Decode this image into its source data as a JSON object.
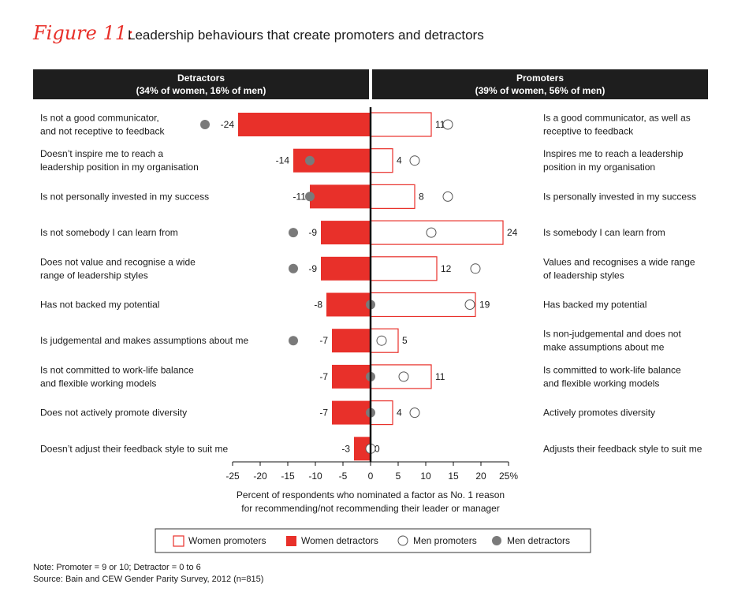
{
  "header": {
    "figure_label": "Figure 11:",
    "title": "Leadership behaviours that create promoters and detractors"
  },
  "columns": {
    "detractors_title": "Detractors",
    "detractors_sub": "(34% of women, 16% of men)",
    "promoters_title": "Promoters",
    "promoters_sub": "(39% of women, 56% of men)"
  },
  "chart_data": {
    "type": "bar",
    "orientation": "horizontal-diverging",
    "xlim": [
      -25,
      25
    ],
    "x_ticks": [
      "-25",
      "-20",
      "-15",
      "-10",
      "-5",
      "0",
      "5",
      "10",
      "15",
      "20",
      "25%"
    ],
    "xlabel": "Percent of respondents who nominated a factor as No. 1 reason for recommending/not recommending their leader or manager",
    "xlabel_lines": [
      "Percent of respondents who nominated a factor as No. 1 reason",
      "for recommending/not recommending their leader or manager"
    ],
    "rows": [
      {
        "detractor_label": [
          "Is not a good communicator,",
          "and not receptive to feedback"
        ],
        "promoter_label": [
          "Is a good communicator, as well as",
          "receptive to feedback"
        ],
        "women_detractors": -24,
        "men_detractors": -30,
        "women_promoters": 11,
        "men_promoters": 14
      },
      {
        "detractor_label": [
          "Doesn’t inspire me to reach a",
          "leadership position in my organisation"
        ],
        "promoter_label": [
          "Inspires me to reach a leadership",
          "position in my organisation"
        ],
        "women_detractors": -14,
        "men_detractors": -11,
        "women_promoters": 4,
        "men_promoters": 8
      },
      {
        "detractor_label": [
          "Is not personally invested in my success"
        ],
        "promoter_label": [
          "Is personally invested in my success"
        ],
        "women_detractors": -11,
        "men_detractors": -11,
        "women_promoters": 8,
        "men_promoters": 14
      },
      {
        "detractor_label": [
          "Is not somebody I can learn from"
        ],
        "promoter_label": [
          "Is somebody I can learn from"
        ],
        "women_detractors": -9,
        "men_detractors": -14,
        "women_promoters": 24,
        "men_promoters": 11
      },
      {
        "detractor_label": [
          "Does not value and recognise a wide",
          "range of leadership styles"
        ],
        "promoter_label": [
          "Values and recognises a wide range",
          "of leadership styles"
        ],
        "women_detractors": -9,
        "men_detractors": -14,
        "women_promoters": 12,
        "men_promoters": 19
      },
      {
        "detractor_label": [
          "Has not backed my potential"
        ],
        "promoter_label": [
          "Has backed my potential"
        ],
        "women_detractors": -8,
        "men_detractors": 0,
        "women_promoters": 19,
        "men_promoters": 18
      },
      {
        "detractor_label": [
          "Is judgemental and makes assumptions about me"
        ],
        "promoter_label": [
          "Is non-judgemental and does not",
          "make assumptions about me"
        ],
        "women_detractors": -7,
        "men_detractors": -14,
        "women_promoters": 5,
        "men_promoters": 2
      },
      {
        "detractor_label": [
          "Is not committed to work-life balance",
          "and flexible working models"
        ],
        "promoter_label": [
          "Is committed to work-life balance",
          "and flexible working models"
        ],
        "women_detractors": -7,
        "men_detractors": 0,
        "women_promoters": 11,
        "men_promoters": 6
      },
      {
        "detractor_label": [
          "Does not actively promote diversity"
        ],
        "promoter_label": [
          "Actively promotes diversity"
        ],
        "women_detractors": -7,
        "men_detractors": 0,
        "women_promoters": 4,
        "men_promoters": 8
      },
      {
        "detractor_label": [
          "Doesn’t adjust their feedback style to suit me"
        ],
        "promoter_label": [
          "Adjusts their feedback style to suit me"
        ],
        "women_detractors": -3,
        "men_detractors": 0,
        "women_promoters": 0,
        "men_promoters": 0
      }
    ],
    "women_detractor_labels": [
      "-24",
      "-14",
      "-11",
      "-9",
      "-9",
      "-8",
      "-7",
      "-7",
      "-7",
      "-3"
    ],
    "women_promoter_labels": [
      "11",
      "4",
      "8",
      "24",
      "12",
      "19",
      "5",
      "11",
      "4",
      "0"
    ],
    "legend": [
      {
        "name": "Women promoters",
        "style": "open-square"
      },
      {
        "name": "Women detractors",
        "style": "filled-square"
      },
      {
        "name": "Men promoters",
        "style": "open-circle"
      },
      {
        "name": "Men detractors",
        "style": "filled-circle"
      }
    ],
    "legend_position": "bottom",
    "grid": false
  },
  "colors": {
    "accent": "#e8302a",
    "header_bg": "#1e1e1e",
    "men_detractor_dot": "#7a7a7a",
    "text": "#1a1a1a"
  },
  "footnotes": {
    "note": "Note: Promoter = 9 or 10; Detractor = 0 to 6",
    "source": "Source: Bain and CEW Gender Parity Survey, 2012 (n=815)"
  }
}
